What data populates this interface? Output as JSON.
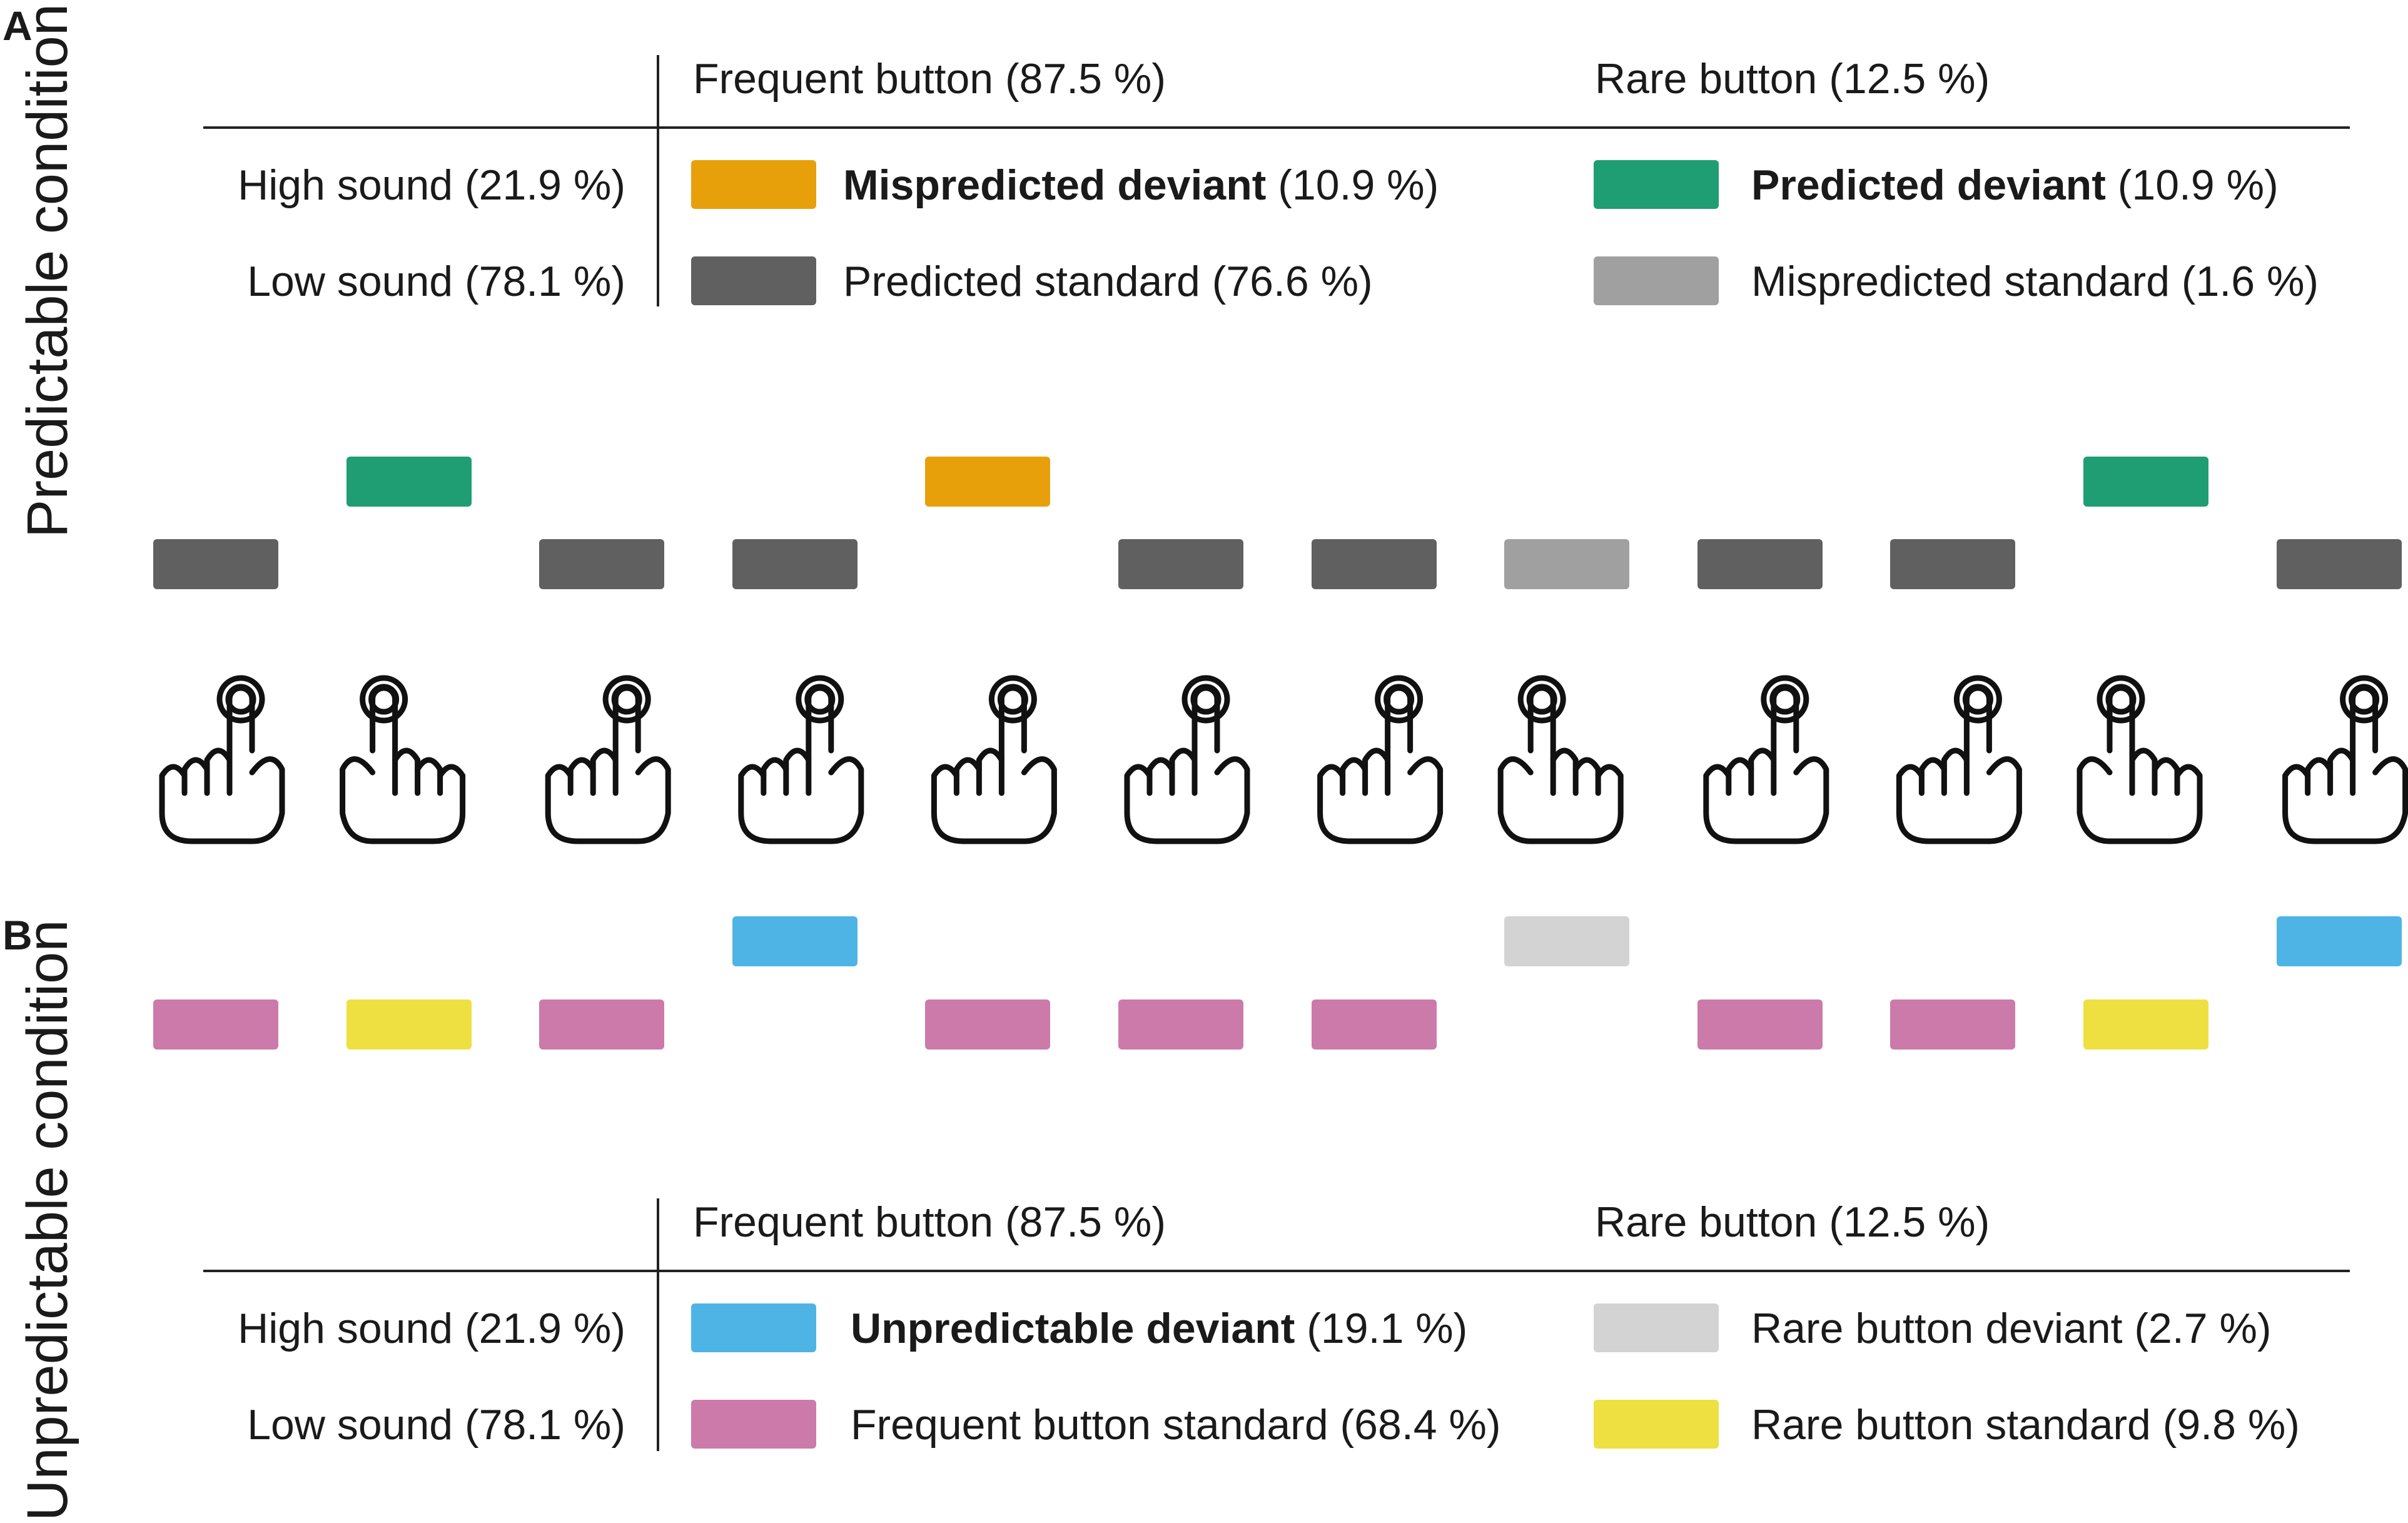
{
  "sections": {
    "a": {
      "letter": "A",
      "label": "Predictable condition",
      "header_frequent": "Frequent button (87.5 %)",
      "header_rare": "Rare button (12.5 %)",
      "row_high": "High sound (21.9 %)",
      "row_low": "Low sound (78.1 %)",
      "cells": [
        {
          "bold": "Mispredicted deviant",
          "rest": " (10.9 %)",
          "color": "#E8A00A"
        },
        {
          "bold": "Predicted deviant",
          "rest": " (10.9 %)",
          "color": "#1E9E72"
        },
        {
          "bold": "",
          "rest": "Predicted standard (76.6 %)",
          "color": "#606060"
        },
        {
          "bold": "",
          "rest": "Mispredicted standard (1.6 %)",
          "color": "#A0A0A0"
        }
      ]
    },
    "b": {
      "letter": "B",
      "label": "Unpredictable condition",
      "header_frequent": "Frequent button (87.5 %)",
      "header_rare": "Rare button (12.5 %)",
      "row_high": "High sound (21.9 %)",
      "row_low": "Low sound (78.1 %)",
      "cells": [
        {
          "bold": "Unpredictable deviant",
          "rest": " (19.1 %)",
          "color": "#4EB4E6"
        },
        {
          "bold": "",
          "rest": "Rare button deviant (2.7 %)",
          "color": "#D3D3D3"
        },
        {
          "bold": "",
          "rest": "Frequent button standard (68.4 %)",
          "color": "#CC7AAA"
        },
        {
          "bold": "",
          "rest": "Rare button standard (9.8 %)",
          "color": "#EEE040"
        }
      ]
    }
  },
  "sequence": {
    "button_press": [
      "frequent",
      "rare",
      "frequent",
      "frequent",
      "frequent",
      "frequent",
      "frequent",
      "rare",
      "frequent",
      "frequent",
      "rare",
      "frequent"
    ],
    "predictable_trials": [
      {
        "sound": "low",
        "color": "#606060"
      },
      {
        "sound": "high",
        "color": "#1E9E72"
      },
      {
        "sound": "low",
        "color": "#606060"
      },
      {
        "sound": "low",
        "color": "#606060"
      },
      {
        "sound": "high",
        "color": "#E8A00A"
      },
      {
        "sound": "low",
        "color": "#606060"
      },
      {
        "sound": "low",
        "color": "#606060"
      },
      {
        "sound": "low",
        "color": "#A0A0A0"
      },
      {
        "sound": "low",
        "color": "#606060"
      },
      {
        "sound": "low",
        "color": "#606060"
      },
      {
        "sound": "high",
        "color": "#1E9E72"
      },
      {
        "sound": "low",
        "color": "#606060"
      }
    ],
    "unpredictable_trials": [
      {
        "sound": "low",
        "color": "#CC7AAA"
      },
      {
        "sound": "low",
        "color": "#EEE040"
      },
      {
        "sound": "low",
        "color": "#CC7AAA"
      },
      {
        "sound": "high",
        "color": "#4EB4E6"
      },
      {
        "sound": "low",
        "color": "#CC7AAA"
      },
      {
        "sound": "low",
        "color": "#CC7AAA"
      },
      {
        "sound": "low",
        "color": "#CC7AAA"
      },
      {
        "sound": "high",
        "color": "#D3D3D3"
      },
      {
        "sound": "low",
        "color": "#CC7AAA"
      },
      {
        "sound": "low",
        "color": "#CC7AAA"
      },
      {
        "sound": "low",
        "color": "#EEE040"
      },
      {
        "sound": "high",
        "color": "#4EB4E6"
      }
    ]
  }
}
